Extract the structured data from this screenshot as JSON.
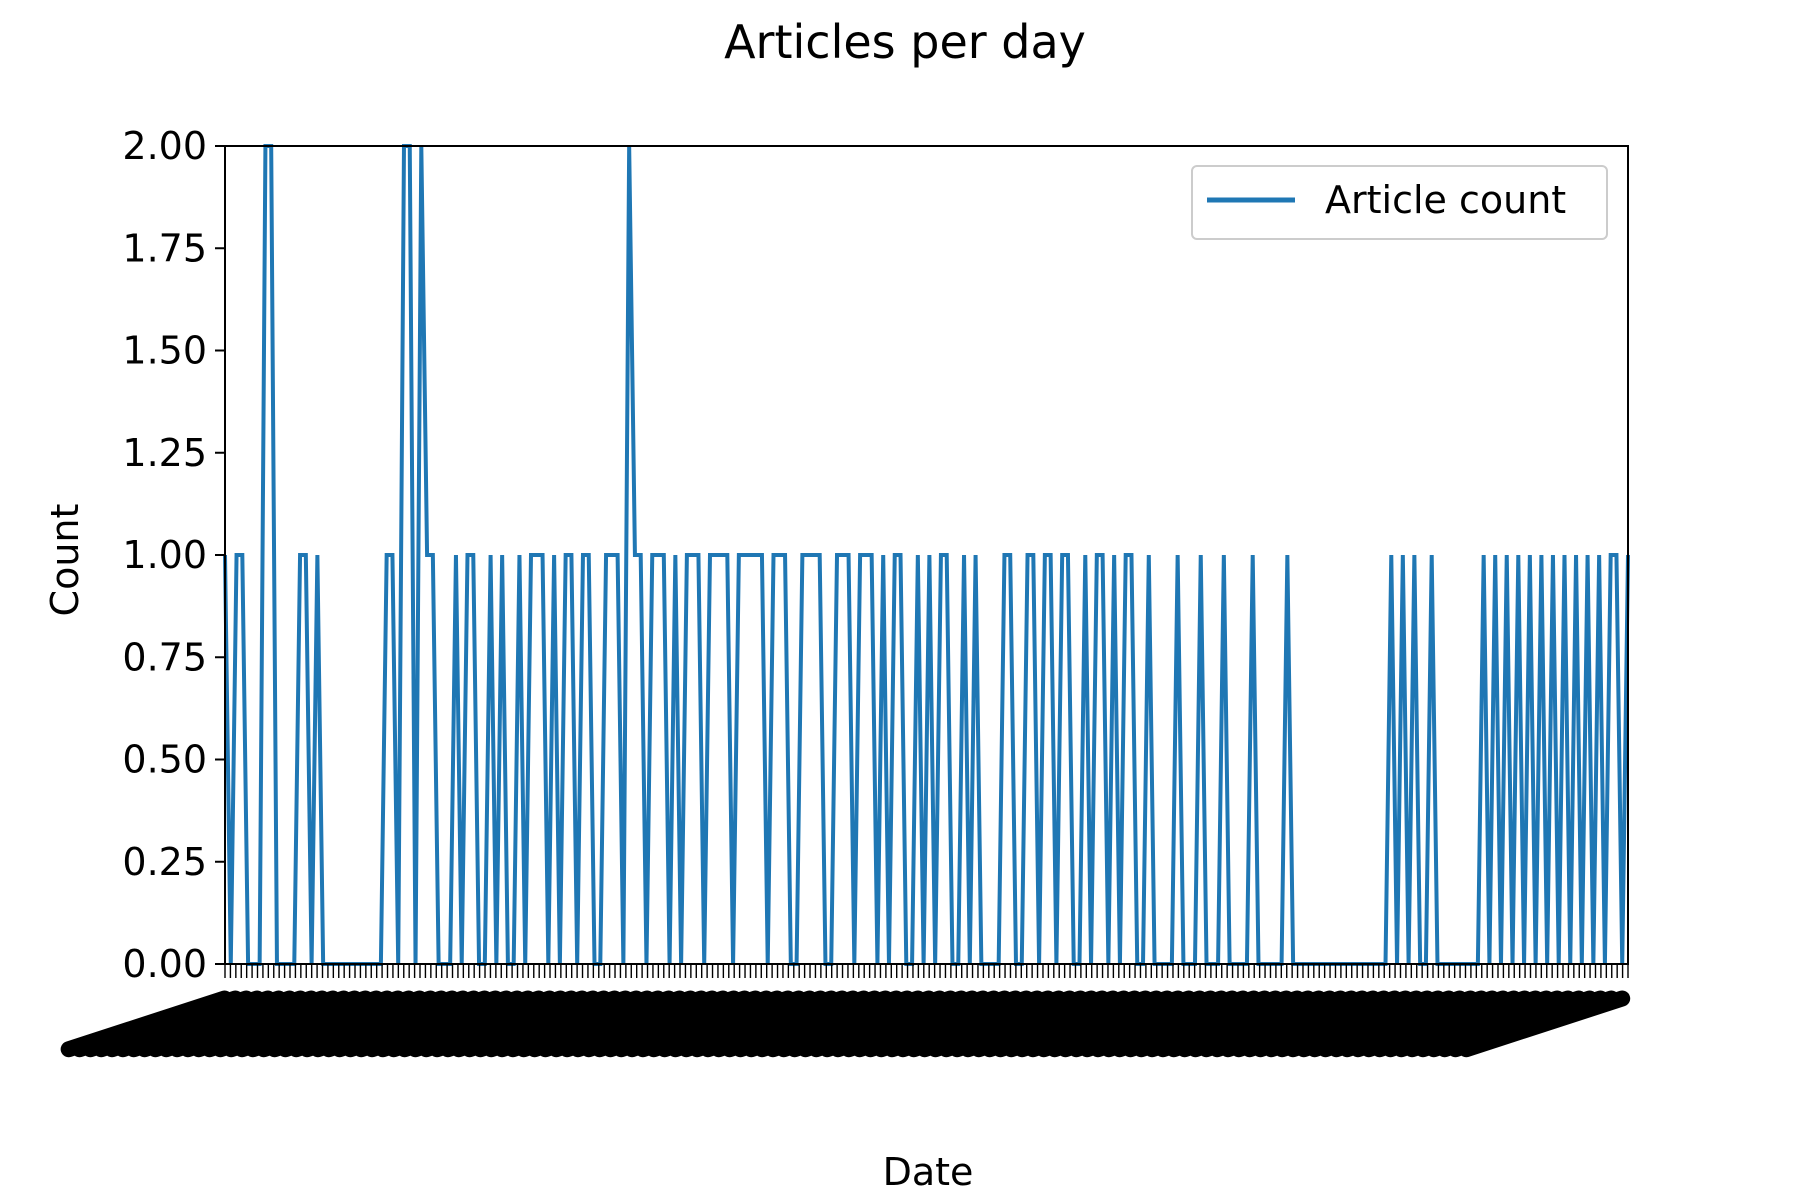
{
  "chart_data": {
    "type": "line",
    "title": "Articles per day",
    "xlabel": "Date",
    "ylabel": "Count",
    "ylim": [
      0,
      2
    ],
    "yticks": [
      0.0,
      0.25,
      0.5,
      0.75,
      1.0,
      1.25,
      1.5,
      1.75,
      2.0
    ],
    "ytick_labels": [
      "0.00",
      "0.25",
      "0.50",
      "0.75",
      "1.00",
      "1.25",
      "1.50",
      "1.75",
      "2.00"
    ],
    "grid": false,
    "legend_position": "top-right",
    "x_tick_labels_legible": false,
    "series": [
      {
        "name": "Article count",
        "color": "#1f77b4",
        "values": [
          1,
          0,
          1,
          1,
          0,
          0,
          0,
          2,
          2,
          0,
          0,
          0,
          0,
          1,
          1,
          0,
          1,
          0,
          0,
          0,
          0,
          0,
          0,
          0,
          0,
          0,
          0,
          0,
          1,
          1,
          0,
          2,
          2,
          0,
          2,
          1,
          1,
          0,
          0,
          0,
          1,
          0,
          1,
          1,
          0,
          0,
          1,
          0,
          1,
          0,
          0,
          1,
          0,
          1,
          1,
          1,
          0,
          1,
          0,
          1,
          1,
          0,
          1,
          1,
          0,
          0,
          1,
          1,
          1,
          0,
          2,
          1,
          1,
          0,
          1,
          1,
          1,
          0,
          1,
          0,
          1,
          1,
          1,
          0,
          1,
          1,
          1,
          1,
          0,
          1,
          1,
          1,
          1,
          1,
          0,
          1,
          1,
          1,
          0,
          0,
          1,
          1,
          1,
          1,
          0,
          0,
          1,
          1,
          1,
          0,
          1,
          1,
          1,
          0,
          1,
          0,
          1,
          1,
          0,
          0,
          1,
          0,
          1,
          0,
          1,
          1,
          0,
          0,
          1,
          0,
          1,
          0,
          0,
          0,
          0,
          1,
          1,
          0,
          0,
          1,
          1,
          0,
          1,
          1,
          0,
          1,
          1,
          0,
          0,
          1,
          0,
          1,
          1,
          0,
          1,
          0,
          1,
          1,
          0,
          0,
          1,
          0,
          0,
          0,
          0,
          1,
          0,
          0,
          0,
          1,
          0,
          0,
          0,
          1,
          0,
          0,
          0,
          0,
          1,
          0,
          0,
          0,
          0,
          0,
          1,
          0,
          0,
          0,
          0,
          0,
          0,
          0,
          0,
          0,
          0,
          0,
          0,
          0,
          0,
          0,
          0,
          0,
          1,
          0,
          1,
          0,
          1,
          0,
          0,
          1,
          0,
          0,
          0,
          0,
          0,
          0,
          0,
          0,
          1,
          0,
          1,
          0,
          1,
          0,
          1,
          0,
          1,
          0,
          1,
          0,
          1,
          0,
          1,
          0,
          1,
          0,
          1,
          0,
          1,
          0,
          1,
          1,
          0,
          1
        ]
      }
    ]
  }
}
